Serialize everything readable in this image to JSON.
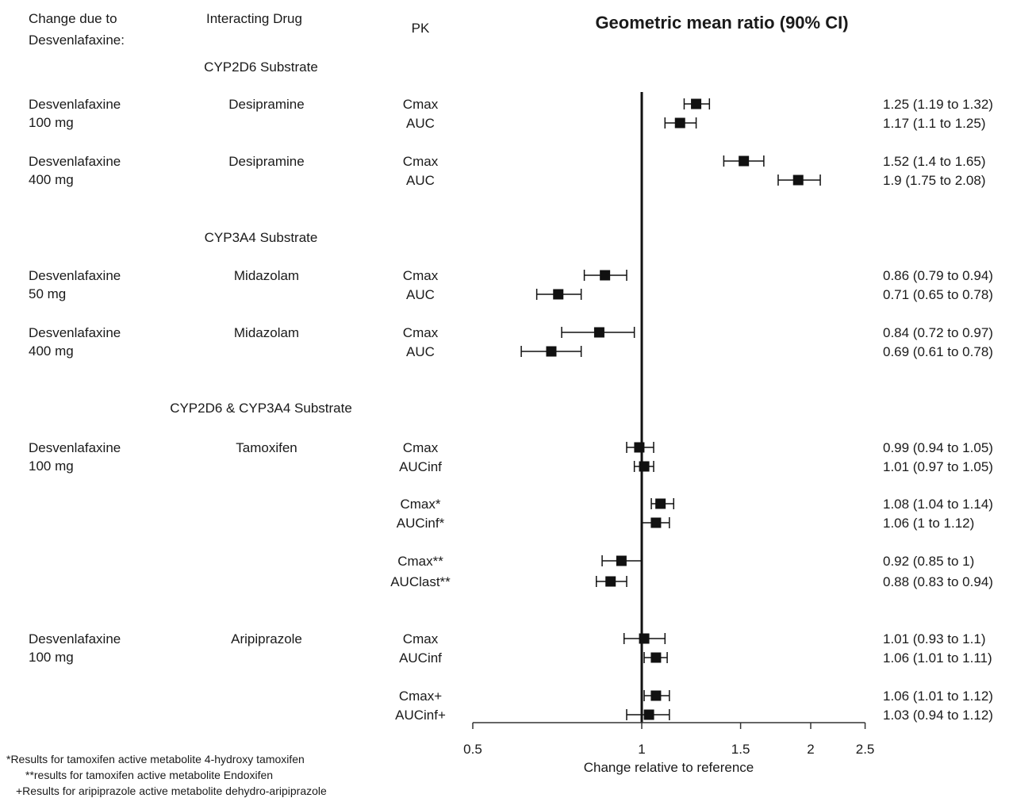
{
  "chart_data": {
    "type": "scatter",
    "title": "Geometric mean ratio (90% CI)",
    "headers": {
      "change_line1": "Change due to",
      "change_line2": "Desvenlafaxine:",
      "interacting": "Interacting Drug",
      "pk": "PK"
    },
    "xlabel": "Change relative to reference",
    "xscale": "log",
    "xlim": [
      0.5,
      2.5
    ],
    "xticks": [
      "0.5",
      "1",
      "1.5",
      "2",
      "2.5"
    ],
    "reference_line": 1,
    "sections": [
      "CYP2D6 Substrate",
      "CYP3A4 Substrate",
      "CYP2D6 & CYP3A4 Substrate"
    ],
    "groups": [
      {
        "dose1": "Desvenlafaxine",
        "dose2": "100 mg",
        "drug": "Desipramine"
      },
      {
        "dose1": "Desvenlafaxine",
        "dose2": "400 mg",
        "drug": "Desipramine"
      },
      {
        "dose1": "Desvenlafaxine",
        "dose2": "50 mg",
        "drug": "Midazolam"
      },
      {
        "dose1": "Desvenlafaxine",
        "dose2": "400 mg",
        "drug": "Midazolam"
      },
      {
        "dose1": "Desvenlafaxine",
        "dose2": "100 mg",
        "drug": "Tamoxifen"
      },
      {
        "dose1": "Desvenlafaxine",
        "dose2": "100 mg",
        "drug": "Aripiprazole"
      }
    ],
    "rows": [
      {
        "pk": "Cmax",
        "gmr": 1.25,
        "lo": 1.19,
        "hi": 1.32,
        "label": "1.25 (1.19 to 1.32)"
      },
      {
        "pk": "AUC",
        "gmr": 1.17,
        "lo": 1.1,
        "hi": 1.25,
        "label": "1.17 (1.1 to 1.25)"
      },
      {
        "pk": "Cmax",
        "gmr": 1.52,
        "lo": 1.4,
        "hi": 1.65,
        "label": "1.52 (1.4 to 1.65)"
      },
      {
        "pk": "AUC",
        "gmr": 1.9,
        "lo": 1.75,
        "hi": 2.08,
        "label": "1.9 (1.75 to 2.08)"
      },
      {
        "pk": "Cmax",
        "gmr": 0.86,
        "lo": 0.79,
        "hi": 0.94,
        "label": "0.86 (0.79 to 0.94)"
      },
      {
        "pk": "AUC",
        "gmr": 0.71,
        "lo": 0.65,
        "hi": 0.78,
        "label": "0.71 (0.65 to 0.78)"
      },
      {
        "pk": "Cmax",
        "gmr": 0.84,
        "lo": 0.72,
        "hi": 0.97,
        "label": "0.84 (0.72 to 0.97)"
      },
      {
        "pk": "AUC",
        "gmr": 0.69,
        "lo": 0.61,
        "hi": 0.78,
        "label": "0.69 (0.61 to 0.78)"
      },
      {
        "pk": "Cmax",
        "gmr": 0.99,
        "lo": 0.94,
        "hi": 1.05,
        "label": "0.99 (0.94 to 1.05)"
      },
      {
        "pk": "AUCinf",
        "gmr": 1.01,
        "lo": 0.97,
        "hi": 1.05,
        "label": "1.01 (0.97 to 1.05)"
      },
      {
        "pk": "Cmax*",
        "gmr": 1.08,
        "lo": 1.04,
        "hi": 1.14,
        "label": "1.08 (1.04 to 1.14)"
      },
      {
        "pk": "AUCinf*",
        "gmr": 1.06,
        "lo": 1.0,
        "hi": 1.12,
        "label": "1.06 (1 to 1.12)"
      },
      {
        "pk": "Cmax**",
        "gmr": 0.92,
        "lo": 0.85,
        "hi": 1.0,
        "label": "0.92 (0.85 to 1)"
      },
      {
        "pk": "AUClast**",
        "gmr": 0.88,
        "lo": 0.83,
        "hi": 0.94,
        "label": "0.88 (0.83 to 0.94)"
      },
      {
        "pk": "Cmax",
        "gmr": 1.01,
        "lo": 0.93,
        "hi": 1.1,
        "label": "1.01 (0.93 to 1.1)"
      },
      {
        "pk": "AUCinf",
        "gmr": 1.06,
        "lo": 1.01,
        "hi": 1.11,
        "label": "1.06 (1.01 to 1.11)"
      },
      {
        "pk": "Cmax+",
        "gmr": 1.06,
        "lo": 1.01,
        "hi": 1.12,
        "label": "1.06 (1.01 to 1.12)"
      },
      {
        "pk": "AUCinf+",
        "gmr": 1.03,
        "lo": 0.94,
        "hi": 1.12,
        "label": "1.03 (0.94 to 1.12)"
      }
    ],
    "footnotes": [
      "*Results for tamoxifen active metabolite 4-hydroxy tamoxifen",
      "**results for tamoxifen active metabolite Endoxifen",
      "+Results for aripiprazole active metabolite dehydro-aripiprazole"
    ]
  }
}
